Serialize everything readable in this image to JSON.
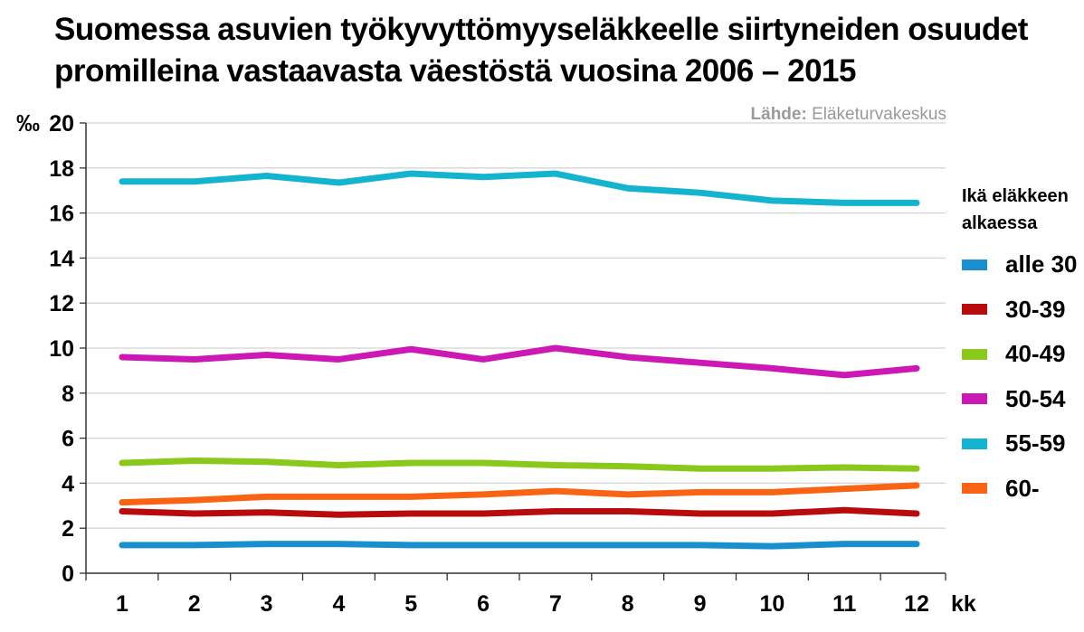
{
  "title_lines": [
    "Suomessa asuvien työkyvyttömyyseläkkeelle siirtyneiden osuudet",
    "promilleina vastaavasta väestöstä vuosina 2006 – 2015"
  ],
  "source": {
    "label": "Lähde:",
    "name": "Eläketurvakeskus"
  },
  "chart_data": {
    "type": "line",
    "title": "Suomessa asuvien työkyvyttömyyseläkkeelle siirtyneiden osuudet promilleina vastaavasta väestöstä vuosina 2006 – 2015",
    "xlabel": "kk",
    "ylabel": "‰",
    "x": [
      1,
      2,
      3,
      4,
      5,
      6,
      7,
      8,
      9,
      10,
      11,
      12
    ],
    "ylim": [
      0,
      20
    ],
    "yticks": [
      0,
      2,
      4,
      6,
      8,
      10,
      12,
      14,
      16,
      18,
      20
    ],
    "grid": true,
    "legend": {
      "title_lines": [
        "Ikä eläkkeen",
        "alkaessa"
      ],
      "placement": "right"
    },
    "series": [
      {
        "name": "alle 30",
        "color": "#1a8fd0",
        "values": [
          1.25,
          1.25,
          1.3,
          1.3,
          1.25,
          1.25,
          1.25,
          1.25,
          1.25,
          1.2,
          1.3,
          1.3
        ]
      },
      {
        "name": "30-39",
        "color": "#b80c0c",
        "values": [
          2.75,
          2.65,
          2.7,
          2.6,
          2.65,
          2.65,
          2.75,
          2.75,
          2.65,
          2.65,
          2.8,
          2.65
        ]
      },
      {
        "name": "40-49",
        "color": "#8ac81c",
        "values": [
          4.9,
          5.0,
          4.95,
          4.8,
          4.9,
          4.9,
          4.8,
          4.75,
          4.65,
          4.65,
          4.7,
          4.65
        ]
      },
      {
        "name": "50-54",
        "color": "#cc18b4",
        "values": [
          9.6,
          9.5,
          9.7,
          9.5,
          9.95,
          9.5,
          10.0,
          9.6,
          9.35,
          9.1,
          8.8,
          9.1
        ]
      },
      {
        "name": "55-59",
        "color": "#14b4d0",
        "values": [
          17.4,
          17.4,
          17.65,
          17.35,
          17.75,
          17.6,
          17.75,
          17.1,
          16.9,
          16.55,
          16.45,
          16.45
        ]
      },
      {
        "name": "60-",
        "color": "#f86414",
        "values": [
          3.15,
          3.25,
          3.4,
          3.4,
          3.4,
          3.5,
          3.65,
          3.5,
          3.6,
          3.6,
          3.75,
          3.9
        ]
      }
    ]
  }
}
